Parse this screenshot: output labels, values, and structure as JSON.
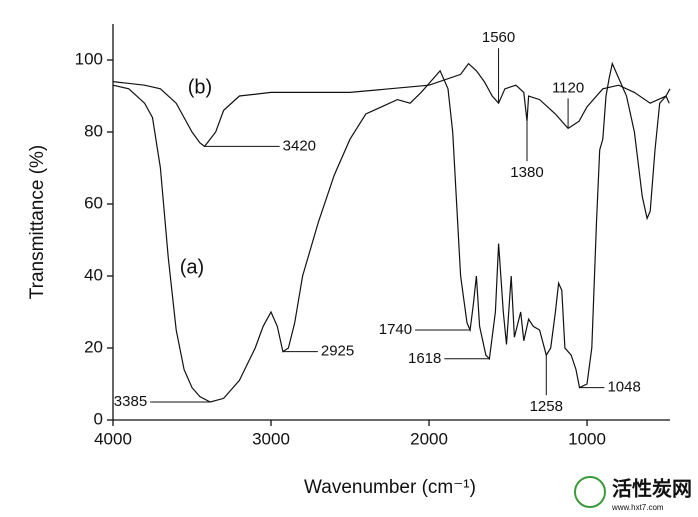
{
  "chart_data": {
    "type": "line",
    "x_label": "Wavenumber (cm⁻¹)",
    "y_label": "Transmittance (%)",
    "xlim": [
      4000,
      475
    ],
    "ylim": [
      0,
      110
    ],
    "xticks": [
      4000,
      3000,
      2000,
      1000
    ],
    "yticks": [
      0,
      20,
      40,
      60,
      80,
      100
    ],
    "grid": false,
    "series": [
      {
        "name": "(a)",
        "color": "#111111",
        "x": [
          4000,
          3900,
          3800,
          3750,
          3700,
          3650,
          3600,
          3550,
          3500,
          3450,
          3385,
          3300,
          3200,
          3100,
          3050,
          3000,
          2960,
          2925,
          2890,
          2850,
          2800,
          2700,
          2600,
          2500,
          2400,
          2300,
          2200,
          2120,
          2050,
          1990,
          1930,
          1880,
          1850,
          1800,
          1760,
          1740,
          1720,
          1700,
          1680,
          1640,
          1618,
          1580,
          1560,
          1530,
          1510,
          1480,
          1460,
          1420,
          1400,
          1370,
          1340,
          1300,
          1258,
          1230,
          1200,
          1180,
          1160,
          1140,
          1100,
          1070,
          1048,
          1000,
          970,
          940,
          920,
          900,
          880,
          860,
          840,
          800,
          750,
          700,
          650,
          620,
          600,
          570,
          540,
          500,
          480
        ],
        "values": [
          93,
          92,
          88,
          84,
          70,
          45,
          25,
          14,
          9,
          6.5,
          5,
          6,
          11,
          20,
          26,
          30,
          26,
          19,
          20,
          27,
          40,
          55,
          68,
          78,
          85,
          87,
          89,
          88,
          91,
          94,
          97,
          92,
          80,
          40,
          27,
          25,
          32,
          40,
          26,
          18,
          17,
          30,
          49,
          30,
          21,
          40,
          23,
          30,
          22,
          28,
          26,
          25,
          18,
          20,
          30,
          38,
          36,
          20,
          18,
          14,
          9,
          10,
          20,
          55,
          75,
          78,
          90,
          95,
          99,
          95,
          90,
          80,
          62,
          56,
          58,
          75,
          88,
          90,
          88
        ]
      },
      {
        "name": "(b)",
        "color": "#111111",
        "x": [
          4000,
          3800,
          3700,
          3600,
          3500,
          3450,
          3420,
          3350,
          3300,
          3200,
          3000,
          2500,
          2000,
          1800,
          1750,
          1700,
          1650,
          1600,
          1560,
          1520,
          1450,
          1400,
          1380,
          1370,
          1300,
          1200,
          1120,
          1050,
          1000,
          900,
          800,
          700,
          600,
          500,
          475
        ],
        "values": [
          94,
          93,
          92,
          88,
          80,
          77,
          76,
          80,
          86,
          90,
          91,
          91,
          93,
          96,
          99,
          97,
          94,
          90,
          88,
          92,
          93,
          91,
          83,
          90,
          89,
          85,
          81,
          83,
          87,
          92,
          93,
          91,
          88,
          90,
          92
        ]
      }
    ],
    "peaks": [
      {
        "wavenumber": 3420,
        "transmittance": 76
      },
      {
        "wavenumber": 1560,
        "transmittance": 88
      },
      {
        "wavenumber": 1120,
        "transmittance": 81
      },
      {
        "wavenumber": 1380,
        "transmittance": 83
      },
      {
        "wavenumber": 3385,
        "transmittance": 5
      },
      {
        "wavenumber": 2925,
        "transmittance": 19
      },
      {
        "wavenumber": 1740,
        "transmittance": 25
      },
      {
        "wavenumber": 1618,
        "transmittance": 17
      },
      {
        "wavenumber": 1258,
        "transmittance": 18
      },
      {
        "wavenumber": 1048,
        "transmittance": 9
      }
    ]
  },
  "watermark": {
    "title": "活性炭网",
    "url": "www.hxt7.com"
  }
}
